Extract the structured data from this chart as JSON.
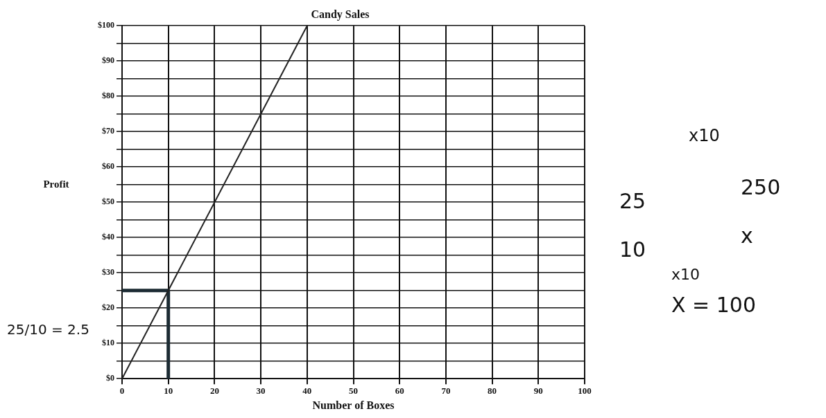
{
  "chart_data": {
    "type": "line",
    "title": "Candy Sales",
    "xlabel": "Number of Boxes",
    "ylabel": "Profit",
    "series": [
      {
        "color": "#222222",
        "x": [
          0,
          40
        ],
        "values": [
          0,
          100
        ]
      },
      {
        "color": "#1c2b33",
        "x": [
          0,
          10,
          10
        ],
        "values": [
          25,
          25,
          0
        ]
      }
    ],
    "xlim": [
      0,
      100
    ],
    "xticks": [
      0,
      10,
      20,
      30,
      40,
      50,
      60,
      70,
      80,
      90,
      100
    ],
    "ylim": [
      0,
      100
    ],
    "yticks": [
      {
        "value": 0,
        "label": "$0"
      },
      {
        "value": 5,
        "label": null
      },
      {
        "value": 10,
        "label": "$10"
      },
      {
        "value": 15,
        "label": null
      },
      {
        "value": 20,
        "label": "$20"
      },
      {
        "value": 25,
        "label": null
      },
      {
        "value": 30,
        "label": "$30"
      },
      {
        "value": 35,
        "label": null
      },
      {
        "value": 40,
        "label": "$40"
      },
      {
        "value": 45,
        "label": null
      },
      {
        "value": 50,
        "label": "$50"
      },
      {
        "value": 55,
        "label": null
      },
      {
        "value": 60,
        "label": "$60"
      },
      {
        "value": 65,
        "label": null
      },
      {
        "value": 70,
        "label": "$70"
      },
      {
        "value": 75,
        "label": null
      },
      {
        "value": 80,
        "label": "$80"
      },
      {
        "value": 85,
        "label": null
      },
      {
        "value": 90,
        "label": "$90"
      },
      {
        "value": 95,
        "label": null
      },
      {
        "value": 100,
        "label": "$100"
      }
    ],
    "grid": true,
    "legend": false,
    "marker": "none",
    "line_style": "solid",
    "annotations": [
      "25/10 = 2.5",
      "x10",
      "25",
      "250",
      "10",
      "x",
      "x10",
      "X = 100"
    ]
  }
}
